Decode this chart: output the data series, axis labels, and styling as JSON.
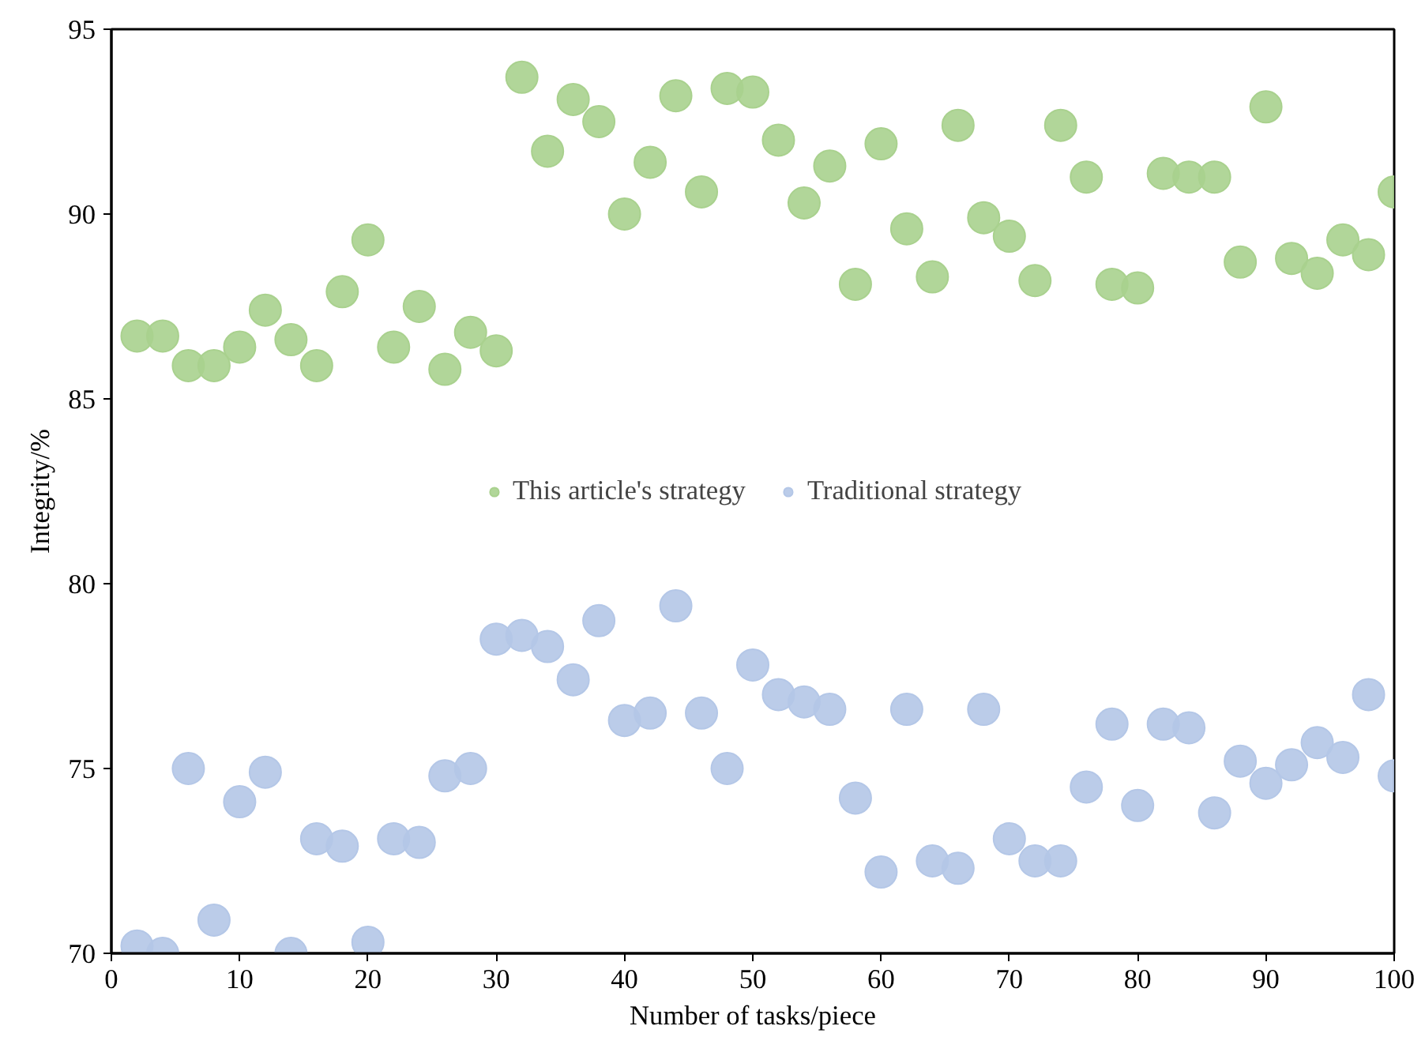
{
  "chart_data": {
    "type": "scatter",
    "xlabel": "Number of tasks/piece",
    "ylabel": "Integrity/%",
    "x": [
      2,
      4,
      6,
      8,
      10,
      12,
      14,
      16,
      18,
      20,
      22,
      24,
      26,
      28,
      30,
      32,
      34,
      36,
      38,
      40,
      42,
      44,
      46,
      48,
      50,
      52,
      54,
      56,
      58,
      60,
      62,
      64,
      66,
      68,
      70,
      72,
      74,
      76,
      78,
      80,
      82,
      84,
      86,
      88,
      90,
      92,
      94,
      96,
      98,
      100
    ],
    "series": [
      {
        "name": "This article's strategy",
        "color": "#a9d18e",
        "values": [
          86.7,
          86.7,
          85.9,
          85.9,
          86.4,
          87.4,
          86.6,
          85.9,
          87.9,
          89.3,
          86.4,
          87.5,
          85.8,
          86.8,
          86.3,
          93.7,
          91.7,
          93.1,
          92.5,
          90.0,
          91.4,
          93.2,
          90.6,
          93.4,
          93.3,
          92.0,
          90.3,
          91.3,
          88.1,
          91.9,
          89.6,
          88.3,
          92.4,
          89.9,
          89.4,
          88.2,
          92.4,
          91.0,
          88.1,
          88.0,
          91.1,
          91.0,
          91.0,
          88.7,
          92.9,
          88.8,
          88.4,
          89.3,
          88.9,
          90.6
        ]
      },
      {
        "name": "Traditional strategy",
        "color": "#b4c7e7",
        "values": [
          70.2,
          70.0,
          75.0,
          70.9,
          74.1,
          74.9,
          70.0,
          73.1,
          72.9,
          70.3,
          73.1,
          73.0,
          74.8,
          75.0,
          78.5,
          78.6,
          78.3,
          77.4,
          79.0,
          76.3,
          76.5,
          79.4,
          76.5,
          75.0,
          77.8,
          77.0,
          76.8,
          76.6,
          74.2,
          72.2,
          76.6,
          72.5,
          72.3,
          76.6,
          73.1,
          72.5,
          72.5,
          74.5,
          76.2,
          74.0,
          76.2,
          76.1,
          73.8,
          75.2,
          74.6,
          75.1,
          75.7,
          75.3,
          77.0,
          74.8
        ]
      }
    ],
    "xlim": [
      0,
      100
    ],
    "xticks": [
      0,
      10,
      20,
      30,
      40,
      50,
      60,
      70,
      80,
      90,
      100
    ],
    "ylim": [
      70,
      95
    ],
    "yticks": [
      70,
      75,
      80,
      85,
      90,
      95
    ],
    "marker": "circle",
    "legend": "center"
  }
}
